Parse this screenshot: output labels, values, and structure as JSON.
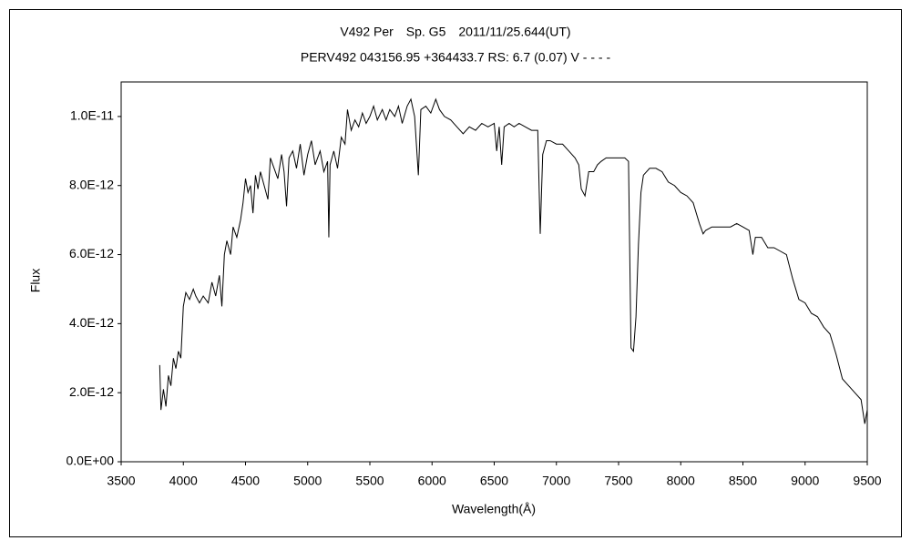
{
  "chart_data": {
    "type": "line",
    "title": "V492 Per　Sp. G5　2011/11/25.644(UT)",
    "subtitle": "PERV492 043156.95 +364433.7 RS: 6.7 (0.07) V - - - -",
    "x_label": "Wavelength(Å)",
    "y_label": "Flux",
    "color": "#000000",
    "xlim": [
      3500,
      9500
    ],
    "xticks": [
      3500,
      4000,
      4500,
      5000,
      5500,
      6000,
      6500,
      7000,
      7500,
      8000,
      8500,
      9000,
      9500
    ],
    "ylim": [
      0,
      1.1e-11
    ],
    "yticks": [
      {
        "value": 0,
        "label": "0.0E+00"
      },
      {
        "value": 2e-12,
        "label": "2.0E-12"
      },
      {
        "value": 4e-12,
        "label": "4.0E-12"
      },
      {
        "value": 6e-12,
        "label": "6.0E-12"
      },
      {
        "value": 8e-12,
        "label": "8.0E-12"
      },
      {
        "value": 1e-11,
        "label": "1.0E-11"
      }
    ],
    "x": [
      3810,
      3820,
      3840,
      3860,
      3880,
      3900,
      3920,
      3940,
      3960,
      3980,
      4000,
      4020,
      4050,
      4080,
      4100,
      4130,
      4160,
      4200,
      4230,
      4260,
      4290,
      4310,
      4330,
      4350,
      4380,
      4400,
      4430,
      4460,
      4480,
      4500,
      4520,
      4540,
      4560,
      4580,
      4600,
      4620,
      4650,
      4680,
      4700,
      4730,
      4760,
      4790,
      4810,
      4830,
      4850,
      4880,
      4910,
      4940,
      4970,
      5000,
      5030,
      5060,
      5100,
      5130,
      5160,
      5170,
      5180,
      5210,
      5240,
      5270,
      5300,
      5320,
      5350,
      5380,
      5410,
      5440,
      5470,
      5500,
      5530,
      5560,
      5600,
      5630,
      5660,
      5700,
      5730,
      5760,
      5800,
      5830,
      5860,
      5890,
      5910,
      5950,
      5990,
      6030,
      6060,
      6100,
      6150,
      6200,
      6250,
      6300,
      6350,
      6400,
      6450,
      6500,
      6520,
      6540,
      6560,
      6580,
      6620,
      6660,
      6700,
      6750,
      6800,
      6850,
      6870,
      6890,
      6920,
      6950,
      7000,
      7050,
      7100,
      7150,
      7180,
      7200,
      7230,
      7260,
      7300,
      7330,
      7360,
      7400,
      7450,
      7500,
      7550,
      7580,
      7600,
      7620,
      7640,
      7660,
      7680,
      7700,
      7750,
      7800,
      7850,
      7900,
      7950,
      8000,
      8050,
      8100,
      8150,
      8180,
      8200,
      8250,
      8300,
      8350,
      8400,
      8450,
      8500,
      8550,
      8580,
      8600,
      8650,
      8700,
      8750,
      8800,
      8850,
      8900,
      8950,
      9000,
      9050,
      9100,
      9150,
      9200,
      9250,
      9300,
      9350,
      9400,
      9450,
      9480,
      9500
    ],
    "values": [
      2.8e-12,
      1.5e-12,
      2.1e-12,
      1.6e-12,
      2.5e-12,
      2.2e-12,
      3e-12,
      2.7e-12,
      3.2e-12,
      3e-12,
      4.5e-12,
      4.9e-12,
      4.7e-12,
      5e-12,
      4.8e-12,
      4.6e-12,
      4.8e-12,
      4.6e-12,
      5.2e-12,
      4.8e-12,
      5.4e-12,
      4.5e-12,
      6e-12,
      6.4e-12,
      6e-12,
      6.8e-12,
      6.5e-12,
      7e-12,
      7.5e-12,
      8.2e-12,
      7.8e-12,
      8e-12,
      7.2e-12,
      8.3e-12,
      7.9e-12,
      8.4e-12,
      8e-12,
      7.6e-12,
      8.8e-12,
      8.5e-12,
      8.2e-12,
      8.9e-12,
      8.4e-12,
      7.4e-12,
      8.8e-12,
      9e-12,
      8.5e-12,
      9.2e-12,
      8.3e-12,
      8.9e-12,
      9.3e-12,
      8.6e-12,
      9e-12,
      8.4e-12,
      8.7e-12,
      6.5e-12,
      8.6e-12,
      9e-12,
      8.5e-12,
      9.4e-12,
      9.2e-12,
      1.02e-11,
      9.6e-12,
      9.9e-12,
      9.7e-12,
      1.01e-11,
      9.8e-12,
      1e-11,
      1.03e-11,
      9.9e-12,
      1.02e-11,
      9.9e-12,
      1.02e-11,
      1e-11,
      1.03e-11,
      9.8e-12,
      1.03e-11,
      1.05e-11,
      1e-11,
      8.3e-12,
      1.02e-11,
      1.03e-11,
      1.01e-11,
      1.05e-11,
      1.02e-11,
      1e-11,
      9.9e-12,
      9.7e-12,
      9.5e-12,
      9.7e-12,
      9.6e-12,
      9.8e-12,
      9.7e-12,
      9.8e-12,
      9e-12,
      9.7e-12,
      8.6e-12,
      9.7e-12,
      9.8e-12,
      9.7e-12,
      9.8e-12,
      9.7e-12,
      9.6e-12,
      9.6e-12,
      6.6e-12,
      8.9e-12,
      9.3e-12,
      9.3e-12,
      9.2e-12,
      9.2e-12,
      9e-12,
      8.8e-12,
      8.6e-12,
      7.9e-12,
      7.7e-12,
      8.4e-12,
      8.4e-12,
      8.6e-12,
      8.7e-12,
      8.8e-12,
      8.8e-12,
      8.8e-12,
      8.8e-12,
      8.7e-12,
      3.3e-12,
      3.2e-12,
      4.2e-12,
      6.3e-12,
      7.8e-12,
      8.3e-12,
      8.5e-12,
      8.5e-12,
      8.4e-12,
      8.1e-12,
      8e-12,
      7.8e-12,
      7.7e-12,
      7.5e-12,
      6.9e-12,
      6.6e-12,
      6.7e-12,
      6.8e-12,
      6.8e-12,
      6.8e-12,
      6.8e-12,
      6.9e-12,
      6.8e-12,
      6.7e-12,
      6e-12,
      6.5e-12,
      6.5e-12,
      6.2e-12,
      6.2e-12,
      6.1e-12,
      6e-12,
      5.3e-12,
      4.7e-12,
      4.6e-12,
      4.3e-12,
      4.2e-12,
      3.9e-12,
      3.7e-12,
      3.1e-12,
      2.4e-12,
      2.2e-12,
      2e-12,
      1.8e-12,
      1.1e-12,
      1.5e-12
    ]
  }
}
